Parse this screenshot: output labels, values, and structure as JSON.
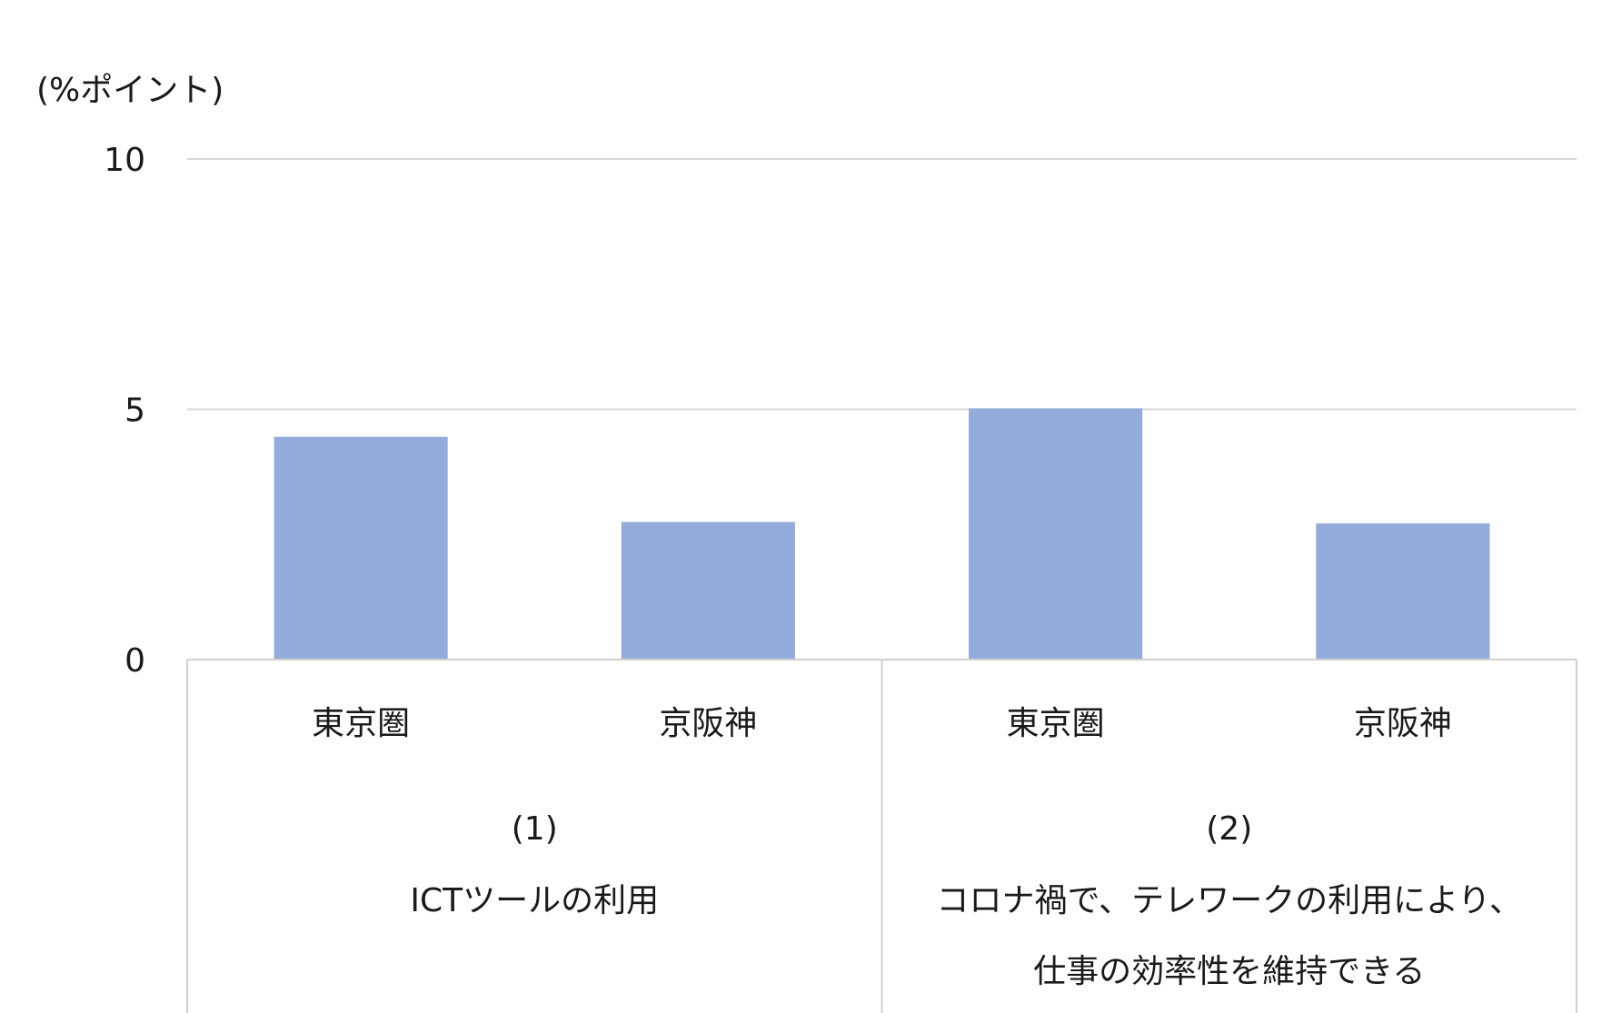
{
  "chart_data": {
    "type": "bar",
    "title": "",
    "ylabel": "(%ポイント)",
    "xlabel": "",
    "ylim": [
      0,
      10
    ],
    "yticks": [
      0,
      5,
      10
    ],
    "grid": true,
    "legend": "none",
    "bar_color": "#93acdc",
    "groups": [
      {
        "number": "(1)",
        "label_lines": [
          "ICTツールの利用"
        ]
      },
      {
        "number": "(2)",
        "label_lines": [
          "コロナ禍で、テレワークの利用により、",
          "仕事の効率性を維持できる"
        ]
      }
    ],
    "categories": [
      "東京圏",
      "京阪神",
      "東京圏",
      "京阪神"
    ],
    "category_group": [
      0,
      0,
      1,
      1
    ],
    "values": [
      4.45,
      2.75,
      5.02,
      2.72
    ]
  }
}
